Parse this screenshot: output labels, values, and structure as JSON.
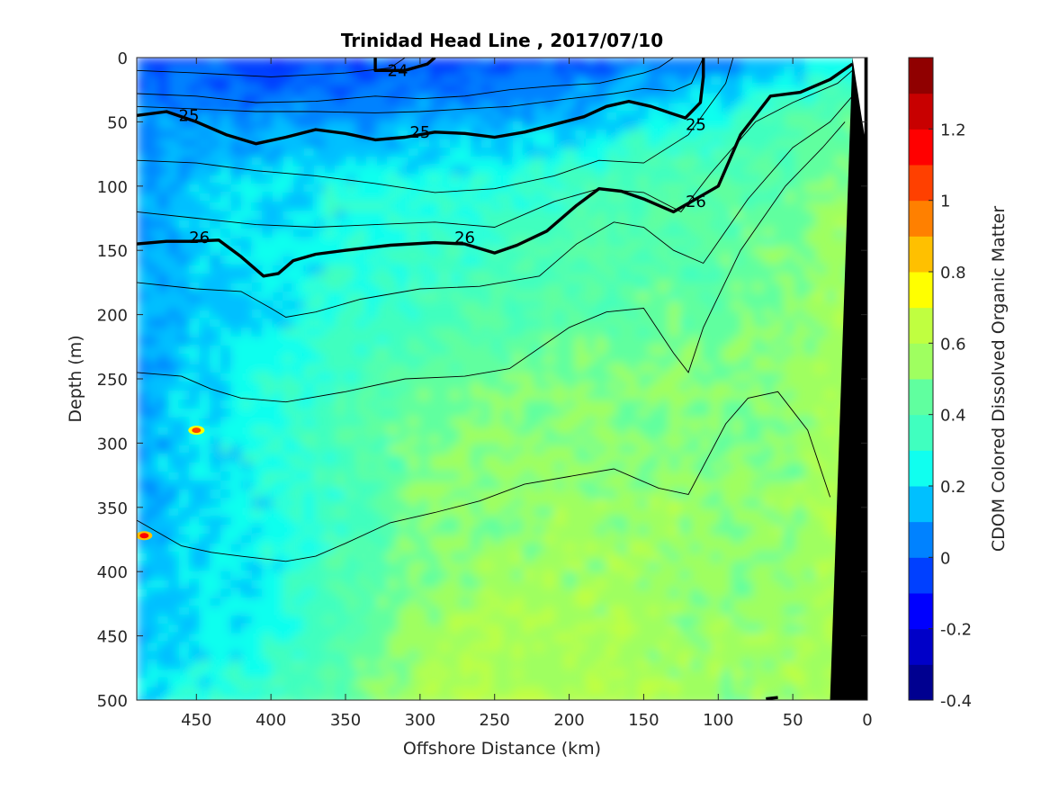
{
  "chart_data": {
    "type": "heatmap",
    "title": "Trinidad Head Line , 2017/07/10",
    "xlabel": "Offshore Distance (km)",
    "ylabel": "Depth (m)",
    "colorbar_label": "CDOM Colored Dissolved Organic Matter",
    "x_reversed": true,
    "y_reversed": true,
    "xlim": [
      0,
      490
    ],
    "ylim": [
      0,
      500
    ],
    "x_ticks": [
      450,
      400,
      350,
      300,
      250,
      200,
      150,
      100,
      50,
      0
    ],
    "x_tick_labels": [
      "450",
      "400",
      "350",
      "300",
      "250",
      "200",
      "150",
      "100",
      "50",
      "0"
    ],
    "y_ticks": [
      0,
      50,
      100,
      150,
      200,
      250,
      300,
      350,
      400,
      450,
      500
    ],
    "y_tick_labels": [
      "0",
      "50",
      "100",
      "150",
      "200",
      "250",
      "300",
      "350",
      "400",
      "450",
      "500"
    ],
    "colorbar": {
      "clim": [
        -0.4,
        1.4
      ],
      "ticks": [
        -0.4,
        -0.2,
        0,
        0.2,
        0.4,
        0.6,
        0.8,
        1,
        1.2
      ],
      "tick_labels": [
        "-0.4",
        "-0.2",
        "0",
        "0.2",
        "0.4",
        "0.6",
        "0.8",
        "1",
        "1.2"
      ],
      "colors": [
        "#000090",
        "#0000c8",
        "#0000fe",
        "#0040ff",
        "#0082ff",
        "#00c0ff",
        "#10ffef",
        "#40ffbf",
        "#60ff9f",
        "#9fff60",
        "#c0ff40",
        "#ffff00",
        "#ffc000",
        "#ff8000",
        "#ff4000",
        "#ff0000",
        "#c80000",
        "#900000"
      ]
    },
    "cdom_grid": {
      "x_km": [
        490,
        450,
        400,
        350,
        300,
        250,
        200,
        150,
        100,
        50,
        25
      ],
      "depth_m": [
        0,
        50,
        100,
        150,
        200,
        250,
        300,
        350,
        400,
        450,
        500
      ],
      "values": [
        [
          -0.05,
          -0.05,
          -0.05,
          -0.05,
          -0.05,
          -0.05,
          -0.02,
          0.02,
          0.05,
          0.15,
          0.25
        ],
        [
          0.05,
          0.08,
          0.08,
          0.1,
          0.1,
          0.12,
          0.15,
          0.25,
          0.3,
          0.4,
          0.45
        ],
        [
          0.12,
          0.18,
          0.2,
          0.25,
          0.28,
          0.3,
          0.35,
          0.4,
          0.42,
          0.45,
          0.52
        ],
        [
          0.1,
          0.15,
          0.22,
          0.28,
          0.32,
          0.36,
          0.4,
          0.42,
          0.44,
          0.48,
          0.55
        ],
        [
          0.1,
          0.15,
          0.2,
          0.3,
          0.35,
          0.4,
          0.42,
          0.45,
          0.45,
          0.5,
          0.56
        ],
        [
          0.1,
          0.18,
          0.28,
          0.35,
          0.45,
          0.48,
          0.5,
          0.5,
          0.5,
          0.52,
          0.58
        ],
        [
          0.12,
          0.2,
          0.3,
          0.38,
          0.48,
          0.5,
          0.52,
          0.52,
          0.5,
          0.52,
          0.58
        ],
        [
          0.1,
          0.18,
          0.25,
          0.35,
          0.5,
          0.52,
          0.55,
          0.55,
          0.52,
          0.55,
          0.58
        ],
        [
          0.15,
          0.2,
          0.25,
          0.38,
          0.5,
          0.55,
          0.55,
          0.55,
          0.52,
          0.55,
          0.58
        ],
        [
          0.12,
          0.18,
          0.28,
          0.4,
          0.55,
          0.6,
          0.58,
          0.55,
          0.55,
          0.55,
          0.58
        ],
        [
          0.2,
          0.28,
          0.35,
          0.45,
          0.58,
          0.62,
          0.6,
          0.58,
          0.55,
          0.55,
          0.58
        ]
      ]
    },
    "hotspots": [
      {
        "x_km": 450,
        "depth_m": 290,
        "value": 1.0
      },
      {
        "x_km": 485,
        "depth_m": 372,
        "value": 1.1
      }
    ],
    "land_mask": {
      "surface_x_km": 10,
      "bottom_x_km": 25,
      "color": "#000000"
    },
    "contours_thick": [
      {
        "label": "25",
        "label_points": [
          [
            455,
            45
          ],
          [
            300,
            58
          ],
          [
            115,
            52
          ]
        ],
        "points": [
          [
            490,
            45
          ],
          [
            470,
            42
          ],
          [
            450,
            50
          ],
          [
            430,
            60
          ],
          [
            410,
            67
          ],
          [
            390,
            62
          ],
          [
            370,
            56
          ],
          [
            350,
            59
          ],
          [
            330,
            64
          ],
          [
            310,
            62
          ],
          [
            290,
            58
          ],
          [
            270,
            59
          ],
          [
            250,
            62
          ],
          [
            230,
            58
          ],
          [
            210,
            52
          ],
          [
            190,
            46
          ],
          [
            175,
            38
          ],
          [
            160,
            34
          ],
          [
            145,
            38
          ],
          [
            130,
            44
          ],
          [
            122,
            47
          ],
          [
            112,
            35
          ],
          [
            110,
            15
          ],
          [
            110,
            0
          ]
        ]
      },
      {
        "label": "26",
        "label_points": [
          [
            448,
            140
          ],
          [
            270,
            140
          ],
          [
            115,
            112
          ]
        ],
        "points": [
          [
            490,
            145
          ],
          [
            470,
            143
          ],
          [
            455,
            143
          ],
          [
            435,
            142
          ],
          [
            420,
            155
          ],
          [
            405,
            170
          ],
          [
            395,
            168
          ],
          [
            385,
            158
          ],
          [
            370,
            153
          ],
          [
            350,
            150
          ],
          [
            320,
            146
          ],
          [
            290,
            144
          ],
          [
            270,
            145
          ],
          [
            250,
            152
          ],
          [
            235,
            146
          ],
          [
            215,
            135
          ],
          [
            195,
            115
          ],
          [
            180,
            102
          ],
          [
            165,
            104
          ],
          [
            150,
            110
          ],
          [
            130,
            120
          ],
          [
            100,
            100
          ],
          [
            85,
            60
          ],
          [
            65,
            30
          ],
          [
            45,
            27
          ],
          [
            25,
            17
          ],
          [
            10,
            5
          ]
        ]
      },
      {
        "label": "24",
        "label_points": [
          [
            315,
            10
          ]
        ],
        "points": [
          [
            330,
            0
          ],
          [
            330,
            10
          ],
          [
            310,
            10
          ],
          [
            295,
            5
          ],
          [
            290,
            0
          ]
        ]
      }
    ],
    "contours_thin": [
      [
        [
          490,
          10
        ],
        [
          450,
          12
        ],
        [
          400,
          15
        ],
        [
          350,
          12
        ],
        [
          320,
          8
        ],
        [
          310,
          0
        ]
      ],
      [
        [
          490,
          28
        ],
        [
          450,
          30
        ],
        [
          410,
          35
        ],
        [
          370,
          34
        ],
        [
          330,
          30
        ],
        [
          300,
          32
        ],
        [
          270,
          30
        ],
        [
          240,
          25
        ],
        [
          210,
          22
        ],
        [
          180,
          20
        ],
        [
          150,
          12
        ],
        [
          140,
          8
        ],
        [
          130,
          0
        ]
      ],
      [
        [
          490,
          38
        ],
        [
          450,
          40
        ],
        [
          410,
          42
        ],
        [
          370,
          42
        ],
        [
          330,
          43
        ],
        [
          300,
          42
        ],
        [
          270,
          40
        ],
        [
          240,
          38
        ],
        [
          200,
          32
        ],
        [
          170,
          28
        ],
        [
          150,
          24
        ],
        [
          130,
          26
        ],
        [
          118,
          20
        ],
        [
          110,
          0
        ]
      ],
      [
        [
          490,
          80
        ],
        [
          450,
          82
        ],
        [
          410,
          88
        ],
        [
          370,
          92
        ],
        [
          330,
          98
        ],
        [
          290,
          105
        ],
        [
          250,
          102
        ],
        [
          210,
          92
        ],
        [
          180,
          80
        ],
        [
          150,
          82
        ],
        [
          120,
          60
        ],
        [
          95,
          20
        ],
        [
          90,
          0
        ]
      ],
      [
        [
          490,
          120
        ],
        [
          450,
          125
        ],
        [
          410,
          130
        ],
        [
          370,
          132
        ],
        [
          330,
          130
        ],
        [
          290,
          128
        ],
        [
          250,
          132
        ],
        [
          210,
          112
        ],
        [
          180,
          102
        ],
        [
          150,
          105
        ],
        [
          125,
          120
        ],
        [
          105,
          90
        ],
        [
          75,
          50
        ],
        [
          50,
          35
        ],
        [
          20,
          20
        ],
        [
          10,
          10
        ]
      ],
      [
        [
          490,
          175
        ],
        [
          450,
          180
        ],
        [
          420,
          182
        ],
        [
          400,
          195
        ],
        [
          390,
          202
        ],
        [
          370,
          198
        ],
        [
          340,
          188
        ],
        [
          300,
          180
        ],
        [
          260,
          178
        ],
        [
          220,
          170
        ],
        [
          195,
          145
        ],
        [
          170,
          128
        ],
        [
          150,
          132
        ],
        [
          130,
          150
        ],
        [
          110,
          160
        ],
        [
          80,
          110
        ],
        [
          50,
          70
        ],
        [
          25,
          50
        ],
        [
          10,
          30
        ]
      ],
      [
        [
          490,
          245
        ],
        [
          460,
          248
        ],
        [
          440,
          258
        ],
        [
          420,
          265
        ],
        [
          390,
          268
        ],
        [
          350,
          260
        ],
        [
          310,
          250
        ],
        [
          270,
          248
        ],
        [
          240,
          242
        ],
        [
          200,
          210
        ],
        [
          175,
          198
        ],
        [
          150,
          195
        ],
        [
          130,
          230
        ],
        [
          120,
          245
        ],
        [
          110,
          210
        ],
        [
          85,
          150
        ],
        [
          55,
          100
        ],
        [
          30,
          70
        ],
        [
          15,
          50
        ]
      ],
      [
        [
          490,
          360
        ],
        [
          475,
          370
        ],
        [
          460,
          380
        ],
        [
          440,
          385
        ],
        [
          420,
          388
        ],
        [
          390,
          392
        ],
        [
          370,
          388
        ],
        [
          350,
          378
        ],
        [
          320,
          362
        ],
        [
          290,
          354
        ],
        [
          260,
          345
        ],
        [
          230,
          332
        ],
        [
          200,
          326
        ],
        [
          170,
          320
        ],
        [
          140,
          335
        ],
        [
          120,
          340
        ],
        [
          95,
          285
        ],
        [
          80,
          265
        ],
        [
          60,
          260
        ],
        [
          40,
          290
        ],
        [
          25,
          342
        ]
      ]
    ],
    "bottom_stub": {
      "points": [
        [
          68,
          499
        ],
        [
          60,
          498
        ]
      ]
    }
  }
}
